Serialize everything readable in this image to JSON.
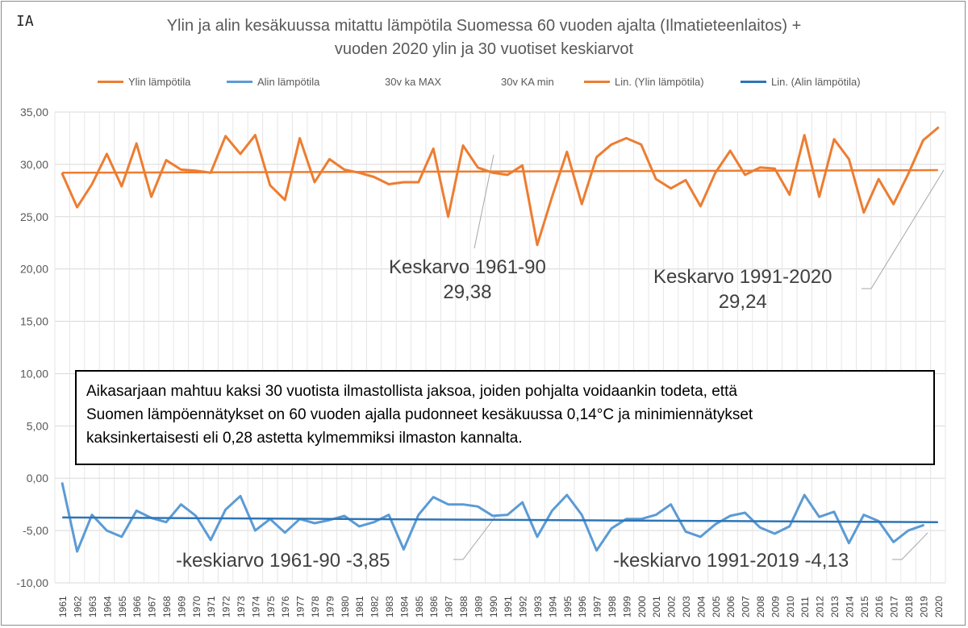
{
  "logo_text": "IA",
  "title_lines": [
    "Ylin ja alin kesäkuussa mitattu lämpötila Suomessa 60 vuoden ajalta (Ilmatieteenlaitos) +",
    "vuoden 2020 ylin ja 30 vuotiset keskiarvot"
  ],
  "legend": [
    {
      "label": "Ylin lämpötila",
      "color": "#ED7D31"
    },
    {
      "label": "Alin lämpötila",
      "color": "#5B9BD5"
    },
    {
      "label": "30v ka MAX",
      "color": ""
    },
    {
      "label": "30v KA min",
      "color": ""
    },
    {
      "label": "Lin. (Ylin lämpötila)",
      "color": "#ED7D31"
    },
    {
      "label": "Lin. (Alin lämpötila)",
      "color": "#2E75B6"
    }
  ],
  "annotations": {
    "max_1961_90": [
      "Keskarvo 1961-90",
      "29,38"
    ],
    "max_1991_2020": [
      "Keskarvo 1991-2020",
      "29,24"
    ],
    "min_1961_90": "-keskiarvo 1961-90   -3,85",
    "min_1991_2019": "-keskiarvo 1991-2019  -4,13"
  },
  "textbox_lines": [
    "Aikasarjaan mahtuu kaksi 30 vuotista ilmastollista jaksoa, joiden pohjalta voidaankin todeta, että",
    "Suomen lämpöennätykset on 60 vuoden ajalla pudonneet kesäkuussa 0,14°C ja minimiennätykset",
    "kaksinkertaisesti eli 0,28 astetta kylmemmiksi ilmaston kannalta."
  ],
  "chart_data": {
    "type": "line",
    "x": [
      "1961",
      "1962",
      "1963",
      "1964",
      "1965",
      "1966",
      "1967",
      "1968",
      "1969",
      "1970",
      "1971",
      "1972",
      "1973",
      "1974",
      "1975",
      "1976",
      "1977",
      "1978",
      "1979",
      "1980",
      "1981",
      "1982",
      "1983",
      "1984",
      "1985",
      "1986",
      "1987",
      "1988",
      "1989",
      "1990",
      "1991",
      "1992",
      "1993",
      "1994",
      "1995",
      "1996",
      "1997",
      "1998",
      "1999",
      "2000",
      "2001",
      "2002",
      "2003",
      "2004",
      "2005",
      "2006",
      "2007",
      "2008",
      "2009",
      "2010",
      "2011",
      "2012",
      "2013",
      "2014",
      "2015",
      "2016",
      "2017",
      "2018",
      "2019",
      "2020"
    ],
    "yticks": [
      "35,00",
      "30,00",
      "25,00",
      "20,00",
      "15,00",
      "10,00",
      "5,00",
      "0,00",
      "-5,00",
      "-10,00"
    ],
    "ylim": [
      -10,
      35
    ],
    "grid": true,
    "legend_position": "top",
    "series": [
      {
        "name": "Ylin lämpötila",
        "color": "#ED7D31",
        "values": [
          29.1,
          25.9,
          28.1,
          31.0,
          27.9,
          32.0,
          26.9,
          30.4,
          29.5,
          29.4,
          29.2,
          32.7,
          31.0,
          32.8,
          28.0,
          26.6,
          32.5,
          28.3,
          30.5,
          29.5,
          29.2,
          28.8,
          28.1,
          28.3,
          28.3,
          31.5,
          25.0,
          31.8,
          29.7,
          29.2,
          29.0,
          29.9,
          22.3,
          26.9,
          31.2,
          26.2,
          30.7,
          31.9,
          32.5,
          31.9,
          28.6,
          27.7,
          28.5,
          26.0,
          29.2,
          31.3,
          29.0,
          29.7,
          29.6,
          27.1,
          32.8,
          26.9,
          32.4,
          30.5,
          25.4,
          28.6,
          26.2,
          29.1,
          32.3,
          33.5
        ]
      },
      {
        "name": "Alin lämpötila",
        "color": "#5B9BD5",
        "values": [
          -0.5,
          -7.0,
          -3.5,
          -5.0,
          -5.6,
          -3.1,
          -3.8,
          -4.2,
          -2.5,
          -3.6,
          -5.9,
          -3.0,
          -1.7,
          -5.0,
          -3.9,
          -5.2,
          -3.9,
          -4.3,
          -4.0,
          -3.6,
          -4.6,
          -4.2,
          -3.5,
          -6.8,
          -3.5,
          -1.8,
          -2.5,
          -2.5,
          -2.7,
          -3.6,
          -3.5,
          -2.3,
          -5.6,
          -3.1,
          -1.6,
          -3.5,
          -6.9,
          -4.8,
          -3.9,
          -3.9,
          -3.5,
          -2.5,
          -5.1,
          -5.6,
          -4.4,
          -3.6,
          -3.3,
          -4.7,
          -5.3,
          -4.6,
          -1.6,
          -3.7,
          -3.2,
          -6.2,
          -3.5,
          -4.1,
          -6.1,
          -5.0,
          -4.5,
          null
        ]
      },
      {
        "name": "Lin. (Ylin lämpötila)",
        "color": "#ED7D31",
        "trend": [
          29.2,
          29.45
        ]
      },
      {
        "name": "Lin. (Alin lämpötila)",
        "color": "#2E75B6",
        "trend": [
          -3.75,
          -4.2
        ]
      }
    ]
  }
}
